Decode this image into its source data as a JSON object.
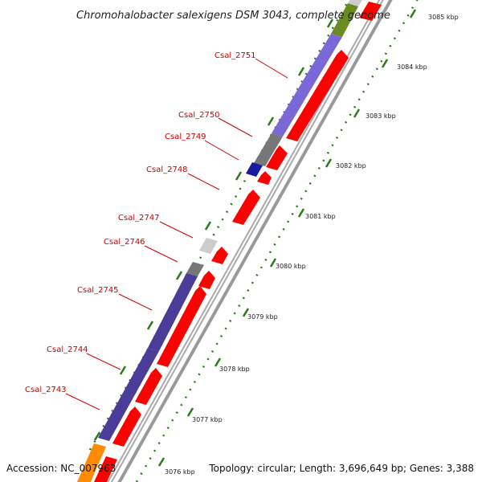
{
  "title": "Chromohalobacter salexigens DSM 3043, complete genome",
  "accession": "Accession: NC_007963",
  "summary": "Topology: circular; Length: 3,696,649 bp; Genes: 3,388",
  "colors": {
    "reverse_cds": "#ff0000",
    "backbone": "#999999",
    "tick": "#2a7a1a",
    "label": "#cc0000"
  },
  "scale": {
    "unit": "kbp",
    "ticks": [
      "3076 kbp",
      "3077 kbp",
      "3078 kbp",
      "3079 kbp",
      "3080 kbp",
      "3081 kbp",
      "3082 kbp",
      "3083 kbp",
      "3084 kbp",
      "3085 kbp"
    ]
  },
  "genes": [
    {
      "name": "Csal_2743"
    },
    {
      "name": "Csal_2744"
    },
    {
      "name": "Csal_2745"
    },
    {
      "name": "Csal_2746"
    },
    {
      "name": "Csal_2747"
    },
    {
      "name": "Csal_2748"
    },
    {
      "name": "Csal_2749"
    },
    {
      "name": "Csal_2750"
    },
    {
      "name": "Csal_2751"
    }
  ]
}
